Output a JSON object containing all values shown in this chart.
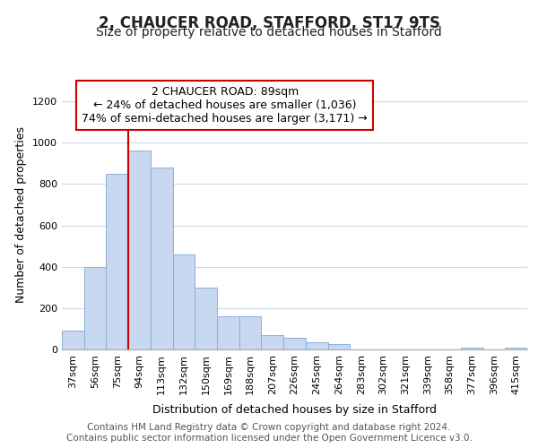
{
  "title": "2, CHAUCER ROAD, STAFFORD, ST17 9TS",
  "subtitle": "Size of property relative to detached houses in Stafford",
  "xlabel": "Distribution of detached houses by size in Stafford",
  "ylabel": "Number of detached properties",
  "categories": [
    "37sqm",
    "56sqm",
    "75sqm",
    "94sqm",
    "113sqm",
    "132sqm",
    "150sqm",
    "169sqm",
    "188sqm",
    "207sqm",
    "226sqm",
    "245sqm",
    "264sqm",
    "283sqm",
    "302sqm",
    "321sqm",
    "339sqm",
    "358sqm",
    "377sqm",
    "396sqm",
    "415sqm"
  ],
  "values": [
    90,
    400,
    850,
    960,
    880,
    460,
    300,
    160,
    160,
    70,
    55,
    35,
    25,
    0,
    0,
    0,
    0,
    0,
    10,
    0,
    10
  ],
  "bar_color": "#c8d8f0",
  "bar_edge_color": "#8ab0d8",
  "vline_color": "#cc0000",
  "vline_x_index": 3,
  "annotation_title": "2 CHAUCER ROAD: 89sqm",
  "annotation_line1": "← 24% of detached houses are smaller (1,036)",
  "annotation_line2": "74% of semi-detached houses are larger (3,171) →",
  "annotation_box_color": "#cc0000",
  "ylim": [
    0,
    1300
  ],
  "yticks": [
    0,
    200,
    400,
    600,
    800,
    1000,
    1200
  ],
  "footer_line1": "Contains HM Land Registry data © Crown copyright and database right 2024.",
  "footer_line2": "Contains public sector information licensed under the Open Government Licence v3.0.",
  "bg_color": "#ffffff",
  "plot_bg_color": "#ffffff",
  "grid_color": "#d0d8e8",
  "title_fontsize": 12,
  "subtitle_fontsize": 10,
  "axis_label_fontsize": 9,
  "tick_fontsize": 8,
  "annotation_fontsize": 9,
  "footer_fontsize": 7.5
}
